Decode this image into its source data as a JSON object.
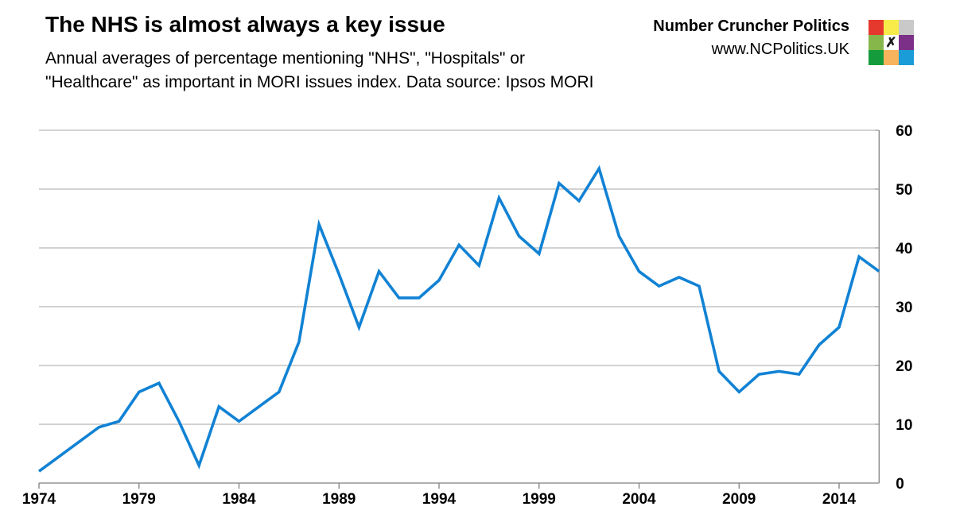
{
  "header": {
    "title": "The NHS is almost always a key issue",
    "subtitle_lines": [
      "Annual averages of percentage mentioning \"NHS\", \"Hospitals\" or",
      "\"Healthcare\" as important in MORI issues index. Data source: Ipsos MORI"
    ]
  },
  "brand": {
    "name": "Number Cruncher Politics",
    "url": "www.NCPolitics.UK",
    "logo": {
      "cell_colors": [
        "#e5392e",
        "#f8ec4a",
        "#c9c9c9",
        "#85b74a",
        "#ffffff",
        "#7c3087",
        "#149c3c",
        "#f8b45c",
        "#199cd8"
      ],
      "center_glyph": "✗"
    }
  },
  "chart_data": {
    "type": "line",
    "title": "The NHS is almost always a key issue",
    "xlabel": "",
    "ylabel": "",
    "x": [
      1974,
      1975,
      1976,
      1977,
      1978,
      1979,
      1980,
      1981,
      1982,
      1983,
      1984,
      1985,
      1986,
      1987,
      1988,
      1989,
      1990,
      1991,
      1992,
      1993,
      1994,
      1995,
      1996,
      1997,
      1998,
      1999,
      2000,
      2001,
      2002,
      2003,
      2004,
      2005,
      2006,
      2007,
      2008,
      2009,
      2010,
      2011,
      2012,
      2013,
      2014,
      2015,
      2016
    ],
    "series": [
      {
        "name": "% mentioning NHS / Hospitals / Healthcare",
        "color": "#1182d4",
        "values": [
          2,
          4.5,
          7,
          9.5,
          10.5,
          15.5,
          17,
          10.5,
          3,
          13,
          10.5,
          13,
          15.5,
          24,
          44,
          35.5,
          26.5,
          36,
          31.5,
          31.5,
          34.5,
          40.5,
          37,
          48.5,
          42,
          39,
          51,
          48,
          53.5,
          42,
          36,
          33.5,
          35,
          33.5,
          19,
          15.5,
          18.5,
          19,
          18.5,
          23.5,
          26.5,
          38.5,
          36
        ]
      }
    ],
    "x_tick_labels": [
      "1974",
      "1979",
      "1984",
      "1989",
      "1994",
      "1999",
      "2004",
      "2009",
      "2014"
    ],
    "y_ticks": [
      0,
      10,
      20,
      30,
      40,
      50,
      60
    ],
    "xlim": [
      1974,
      2016
    ],
    "ylim": [
      0,
      60
    ],
    "grid": "horizontal-only",
    "y_axis_side": "right",
    "legend": "none",
    "gridline_color": "#a6a6a6",
    "axis_color": "#7f7f7f"
  }
}
